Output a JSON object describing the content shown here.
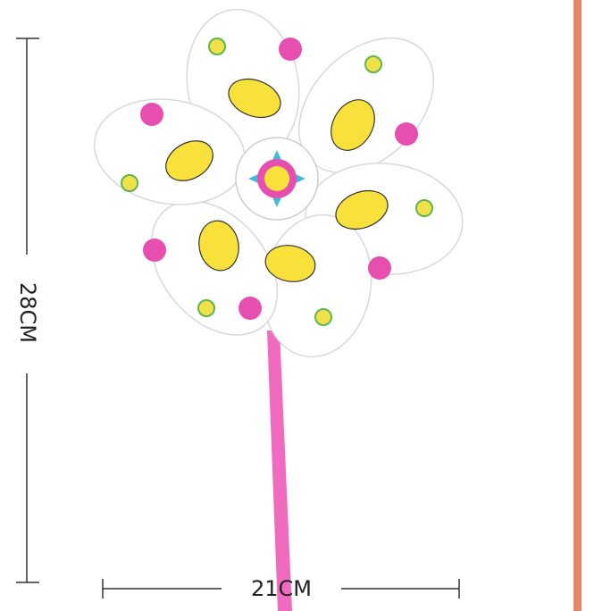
{
  "dimensions": {
    "height": "28CM",
    "width": "21CM"
  }
}
